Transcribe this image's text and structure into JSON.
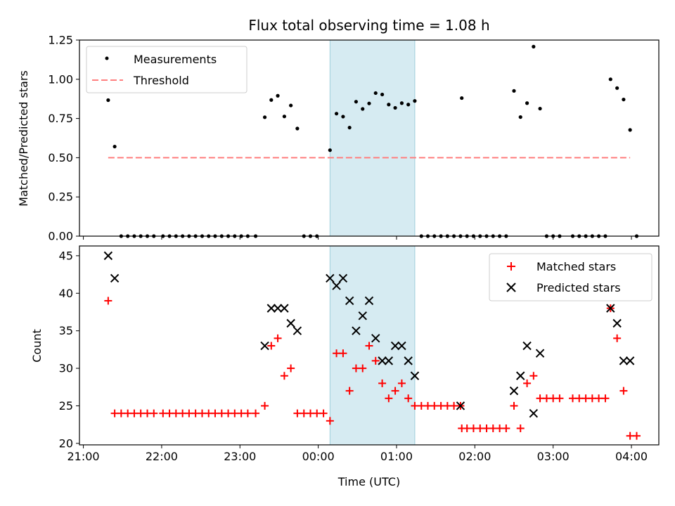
{
  "chart_data": [
    {
      "type": "scatter",
      "title": "Flux total observing time = 1.08 h",
      "xlabel": "",
      "ylabel": "Matched/Predicted stars",
      "xlim": [
        -0.05,
        7.35
      ],
      "ylim": [
        0.0,
        1.25
      ],
      "yticks": [
        0.0,
        0.25,
        0.5,
        0.75,
        1.0,
        1.25
      ],
      "ytick_labels": [
        "0.00",
        "0.25",
        "0.50",
        "0.75",
        "1.00",
        "1.25"
      ],
      "shaded_span": [
        3.15,
        4.233
      ],
      "legend": {
        "position": "top-left",
        "entries": [
          "Measurements",
          "Threshold"
        ]
      },
      "threshold": {
        "name": "Threshold",
        "value": 0.5,
        "x_range": [
          0.317,
          6.983
        ],
        "color": "#ff7f7f"
      },
      "series": [
        {
          "name": "Measurements",
          "color": "#000000",
          "points": [
            [
              0.317,
              0.867
            ],
            [
              0.4,
              0.571
            ],
            [
              0.483,
              0.0
            ],
            [
              0.567,
              0.0
            ],
            [
              0.65,
              0.0
            ],
            [
              0.733,
              0.0
            ],
            [
              0.817,
              0.0
            ],
            [
              0.9,
              0.0
            ],
            [
              1.017,
              0.0
            ],
            [
              1.1,
              0.0
            ],
            [
              1.183,
              0.0
            ],
            [
              1.267,
              0.0
            ],
            [
              1.35,
              0.0
            ],
            [
              1.433,
              0.0
            ],
            [
              1.517,
              0.0
            ],
            [
              1.6,
              0.0
            ],
            [
              1.683,
              0.0
            ],
            [
              1.767,
              0.0
            ],
            [
              1.85,
              0.0
            ],
            [
              1.933,
              0.0
            ],
            [
              2.017,
              0.0
            ],
            [
              2.1,
              0.0
            ],
            [
              2.2,
              0.0
            ],
            [
              2.317,
              0.758
            ],
            [
              2.4,
              0.868
            ],
            [
              2.483,
              0.895
            ],
            [
              2.567,
              0.763
            ],
            [
              2.65,
              0.833
            ],
            [
              2.733,
              0.686
            ],
            [
              2.817,
              0.0
            ],
            [
              2.9,
              0.0
            ],
            [
              2.983,
              0.0
            ],
            [
              3.15,
              0.548
            ],
            [
              3.233,
              0.781
            ],
            [
              3.317,
              0.762
            ],
            [
              3.4,
              0.692
            ],
            [
              3.483,
              0.857
            ],
            [
              3.567,
              0.811
            ],
            [
              3.65,
              0.846
            ],
            [
              3.733,
              0.912
            ],
            [
              3.817,
              0.903
            ],
            [
              3.9,
              0.839
            ],
            [
              3.983,
              0.818
            ],
            [
              4.067,
              0.848
            ],
            [
              4.15,
              0.839
            ],
            [
              4.233,
              0.862
            ],
            [
              4.317,
              0.0
            ],
            [
              4.4,
              0.0
            ],
            [
              4.483,
              0.0
            ],
            [
              4.567,
              0.0
            ],
            [
              4.65,
              0.0
            ],
            [
              4.733,
              0.0
            ],
            [
              4.817,
              0.0
            ],
            [
              4.833,
              0.88
            ],
            [
              4.9,
              0.0
            ],
            [
              4.983,
              0.0
            ],
            [
              5.067,
              0.0
            ],
            [
              5.15,
              0.0
            ],
            [
              5.233,
              0.0
            ],
            [
              5.317,
              0.0
            ],
            [
              5.4,
              0.0
            ],
            [
              5.5,
              0.926
            ],
            [
              5.583,
              0.759
            ],
            [
              5.667,
              0.848
            ],
            [
              5.75,
              1.208
            ],
            [
              5.833,
              0.813
            ],
            [
              5.917,
              0.0
            ],
            [
              6.0,
              0.0
            ],
            [
              6.083,
              0.0
            ],
            [
              6.25,
              0.0
            ],
            [
              6.333,
              0.0
            ],
            [
              6.417,
              0.0
            ],
            [
              6.5,
              0.0
            ],
            [
              6.583,
              0.0
            ],
            [
              6.667,
              0.0
            ],
            [
              6.733,
              1.0
            ],
            [
              6.817,
              0.944
            ],
            [
              6.9,
              0.871
            ],
            [
              6.983,
              0.677
            ],
            [
              7.067,
              0.0
            ]
          ]
        }
      ]
    },
    {
      "type": "scatter",
      "title": "",
      "xlabel": "Time (UTC)",
      "ylabel": "Count",
      "xlim": [
        -0.05,
        7.35
      ],
      "ylim": [
        19.8,
        46.3
      ],
      "yticks": [
        20,
        25,
        30,
        35,
        40,
        45
      ],
      "ytick_labels": [
        "20",
        "25",
        "30",
        "35",
        "40",
        "45"
      ],
      "xticks": [
        0,
        1,
        2,
        3,
        4,
        5,
        6,
        7
      ],
      "xtick_labels": [
        "21:00",
        "22:00",
        "23:00",
        "00:00",
        "01:00",
        "02:00",
        "03:00",
        "04:00"
      ],
      "shaded_span": [
        3.15,
        4.233
      ],
      "legend": {
        "position": "top-right",
        "entries": [
          "Matched stars",
          "Predicted stars"
        ]
      },
      "series": [
        {
          "name": "Matched stars",
          "marker": "plus",
          "color": "#ff0000",
          "points": [
            [
              0.317,
              39
            ],
            [
              0.4,
              24
            ],
            [
              0.483,
              24
            ],
            [
              0.567,
              24
            ],
            [
              0.65,
              24
            ],
            [
              0.733,
              24
            ],
            [
              0.817,
              24
            ],
            [
              0.9,
              24
            ],
            [
              1.017,
              24
            ],
            [
              1.1,
              24
            ],
            [
              1.183,
              24
            ],
            [
              1.267,
              24
            ],
            [
              1.35,
              24
            ],
            [
              1.433,
              24
            ],
            [
              1.517,
              24
            ],
            [
              1.6,
              24
            ],
            [
              1.683,
              24
            ],
            [
              1.767,
              24
            ],
            [
              1.85,
              24
            ],
            [
              1.933,
              24
            ],
            [
              2.017,
              24
            ],
            [
              2.1,
              24
            ],
            [
              2.2,
              24
            ],
            [
              2.317,
              25
            ],
            [
              2.4,
              33
            ],
            [
              2.483,
              34
            ],
            [
              2.567,
              29
            ],
            [
              2.65,
              30
            ],
            [
              2.733,
              24
            ],
            [
              2.817,
              24
            ],
            [
              2.9,
              24
            ],
            [
              2.983,
              24
            ],
            [
              3.067,
              24
            ],
            [
              3.15,
              23
            ],
            [
              3.233,
              32
            ],
            [
              3.317,
              32
            ],
            [
              3.4,
              27
            ],
            [
              3.483,
              30
            ],
            [
              3.567,
              30
            ],
            [
              3.65,
              33
            ],
            [
              3.733,
              31
            ],
            [
              3.817,
              28
            ],
            [
              3.9,
              26
            ],
            [
              3.983,
              27
            ],
            [
              4.067,
              28
            ],
            [
              4.15,
              26
            ],
            [
              4.233,
              25
            ],
            [
              4.317,
              25
            ],
            [
              4.4,
              25
            ],
            [
              4.483,
              25
            ],
            [
              4.567,
              25
            ],
            [
              4.65,
              25
            ],
            [
              4.733,
              25
            ],
            [
              4.817,
              25
            ],
            [
              4.833,
              22
            ],
            [
              4.9,
              22
            ],
            [
              4.983,
              22
            ],
            [
              5.067,
              22
            ],
            [
              5.15,
              22
            ],
            [
              5.233,
              22
            ],
            [
              5.317,
              22
            ],
            [
              5.4,
              22
            ],
            [
              5.5,
              25
            ],
            [
              5.583,
              22
            ],
            [
              5.667,
              28
            ],
            [
              5.75,
              29
            ],
            [
              5.833,
              26
            ],
            [
              5.917,
              26
            ],
            [
              6.0,
              26
            ],
            [
              6.083,
              26
            ],
            [
              6.25,
              26
            ],
            [
              6.333,
              26
            ],
            [
              6.417,
              26
            ],
            [
              6.5,
              26
            ],
            [
              6.583,
              26
            ],
            [
              6.667,
              26
            ],
            [
              6.733,
              38
            ],
            [
              6.817,
              34
            ],
            [
              6.9,
              27
            ],
            [
              6.983,
              21
            ],
            [
              7.067,
              21
            ]
          ]
        },
        {
          "name": "Predicted stars",
          "marker": "x",
          "color": "#000000",
          "points": [
            [
              0.317,
              45
            ],
            [
              0.4,
              42
            ],
            [
              2.317,
              33
            ],
            [
              2.4,
              38
            ],
            [
              2.483,
              38
            ],
            [
              2.567,
              38
            ],
            [
              2.65,
              36
            ],
            [
              2.733,
              35
            ],
            [
              3.15,
              42
            ],
            [
              3.233,
              41
            ],
            [
              3.317,
              42
            ],
            [
              3.4,
              39
            ],
            [
              3.483,
              35
            ],
            [
              3.567,
              37
            ],
            [
              3.65,
              39
            ],
            [
              3.733,
              34
            ],
            [
              3.817,
              31
            ],
            [
              3.9,
              31
            ],
            [
              3.983,
              33
            ],
            [
              4.067,
              33
            ],
            [
              4.15,
              31
            ],
            [
              4.233,
              29
            ],
            [
              4.817,
              25
            ],
            [
              5.5,
              27
            ],
            [
              5.583,
              29
            ],
            [
              5.667,
              33
            ],
            [
              5.75,
              24
            ],
            [
              5.833,
              32
            ],
            [
              6.733,
              38
            ],
            [
              6.817,
              36
            ],
            [
              6.9,
              31
            ],
            [
              6.983,
              31
            ]
          ]
        }
      ]
    }
  ]
}
